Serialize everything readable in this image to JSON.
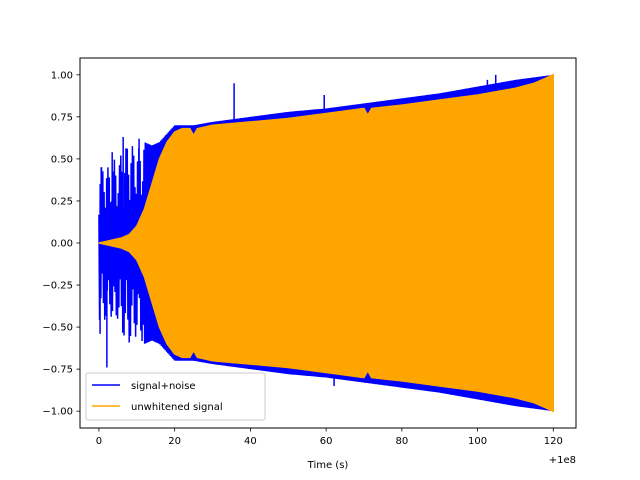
{
  "chart_data": {
    "type": "line",
    "title": "",
    "xlabel": "Time (s)",
    "ylabel": "",
    "x_offset_label": "+1e8",
    "xlim": [
      -5,
      126
    ],
    "ylim": [
      -1.1,
      1.1
    ],
    "x_ticks": [
      0,
      20,
      40,
      60,
      80,
      100,
      120
    ],
    "x_tick_labels": [
      "0",
      "20",
      "40",
      "60",
      "80",
      "100",
      "120"
    ],
    "y_ticks": [
      -1.0,
      -0.75,
      -0.5,
      -0.25,
      0.0,
      0.25,
      0.5,
      0.75,
      1.0
    ],
    "y_tick_labels": [
      "−1.00",
      "−0.75",
      "−0.50",
      "−0.25",
      "0.00",
      "0.25",
      "0.50",
      "0.75",
      "1.00"
    ],
    "grid": false,
    "legend_position": "lower-left",
    "series": [
      {
        "name": "signal+noise",
        "color": "#0000ff",
        "envelope_x": [
          0,
          1,
          2,
          3,
          4,
          5,
          6,
          8,
          10,
          12,
          14,
          16,
          18,
          20,
          22,
          25,
          30,
          40,
          50,
          60,
          70,
          80,
          90,
          100,
          110,
          120
        ],
        "envelope_y": [
          0.48,
          0.45,
          0.47,
          0.42,
          0.5,
          0.45,
          0.55,
          0.6,
          0.55,
          0.6,
          0.58,
          0.6,
          0.65,
          0.7,
          0.7,
          0.7,
          0.72,
          0.75,
          0.78,
          0.8,
          0.83,
          0.86,
          0.89,
          0.93,
          0.97,
          1.0
        ],
        "spikes_x": [
          0.3,
          0.6,
          2.1,
          3.5,
          6.4,
          10.6,
          12.4,
          35.7,
          59.5,
          62.1,
          102.6,
          104.8
        ],
        "spikes_y": [
          -0.54,
          0.45,
          -0.74,
          0.54,
          0.63,
          0.62,
          -0.5,
          0.95,
          0.88,
          -0.85,
          0.97,
          1.0
        ]
      },
      {
        "name": "unwhitened signal",
        "color": "#ffa500",
        "envelope_x": [
          0,
          2,
          4,
          6,
          8,
          10,
          12,
          14,
          16,
          18,
          20,
          22,
          24,
          25,
          26,
          28,
          30,
          40,
          50,
          60,
          70,
          71,
          72,
          80,
          90,
          100,
          110,
          115,
          118,
          120
        ],
        "envelope_y": [
          0.0,
          0.01,
          0.02,
          0.03,
          0.05,
          0.1,
          0.2,
          0.35,
          0.5,
          0.6,
          0.66,
          0.68,
          0.68,
          0.64,
          0.68,
          0.69,
          0.7,
          0.72,
          0.74,
          0.77,
          0.8,
          0.76,
          0.8,
          0.82,
          0.85,
          0.88,
          0.92,
          0.95,
          0.98,
          1.0
        ]
      }
    ]
  }
}
